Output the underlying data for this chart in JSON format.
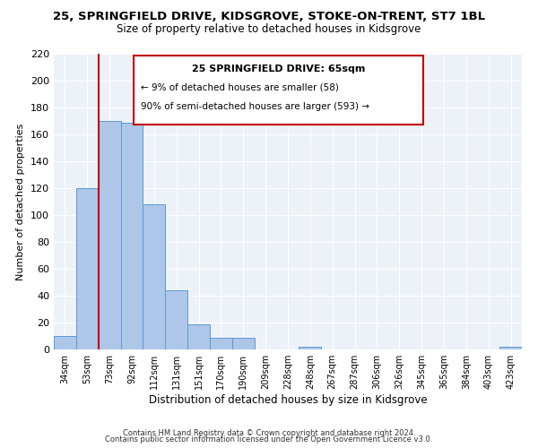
{
  "title_line1": "25, SPRINGFIELD DRIVE, KIDSGROVE, STOKE-ON-TRENT, ST7 1BL",
  "title_line2": "Size of property relative to detached houses in Kidsgrove",
  "xlabel": "Distribution of detached houses by size in Kidsgrove",
  "ylabel": "Number of detached properties",
  "bar_labels": [
    "34sqm",
    "53sqm",
    "73sqm",
    "92sqm",
    "112sqm",
    "131sqm",
    "151sqm",
    "170sqm",
    "190sqm",
    "209sqm",
    "228sqm",
    "248sqm",
    "267sqm",
    "287sqm",
    "306sqm",
    "326sqm",
    "345sqm",
    "365sqm",
    "384sqm",
    "403sqm",
    "423sqm"
  ],
  "bar_values": [
    10,
    120,
    170,
    169,
    108,
    44,
    19,
    9,
    9,
    0,
    0,
    2,
    0,
    0,
    0,
    0,
    0,
    0,
    0,
    0,
    2
  ],
  "bar_color": "#aec6e8",
  "bar_edge_color": "#5b9bd5",
  "ylim": [
    0,
    220
  ],
  "yticks": [
    0,
    20,
    40,
    60,
    80,
    100,
    120,
    140,
    160,
    180,
    200,
    220
  ],
  "vline_x": 1.5,
  "vline_color": "#c00000",
  "annotation_title": "25 SPRINGFIELD DRIVE: 65sqm",
  "annotation_line1": "← 9% of detached houses are smaller (58)",
  "annotation_line2": "90% of semi-detached houses are larger (593) →",
  "annotation_box_color": "#c00000",
  "footer_line1": "Contains HM Land Registry data © Crown copyright and database right 2024.",
  "footer_line2": "Contains public sector information licensed under the Open Government Licence v3.0.",
  "background_color": "#edf2f9"
}
